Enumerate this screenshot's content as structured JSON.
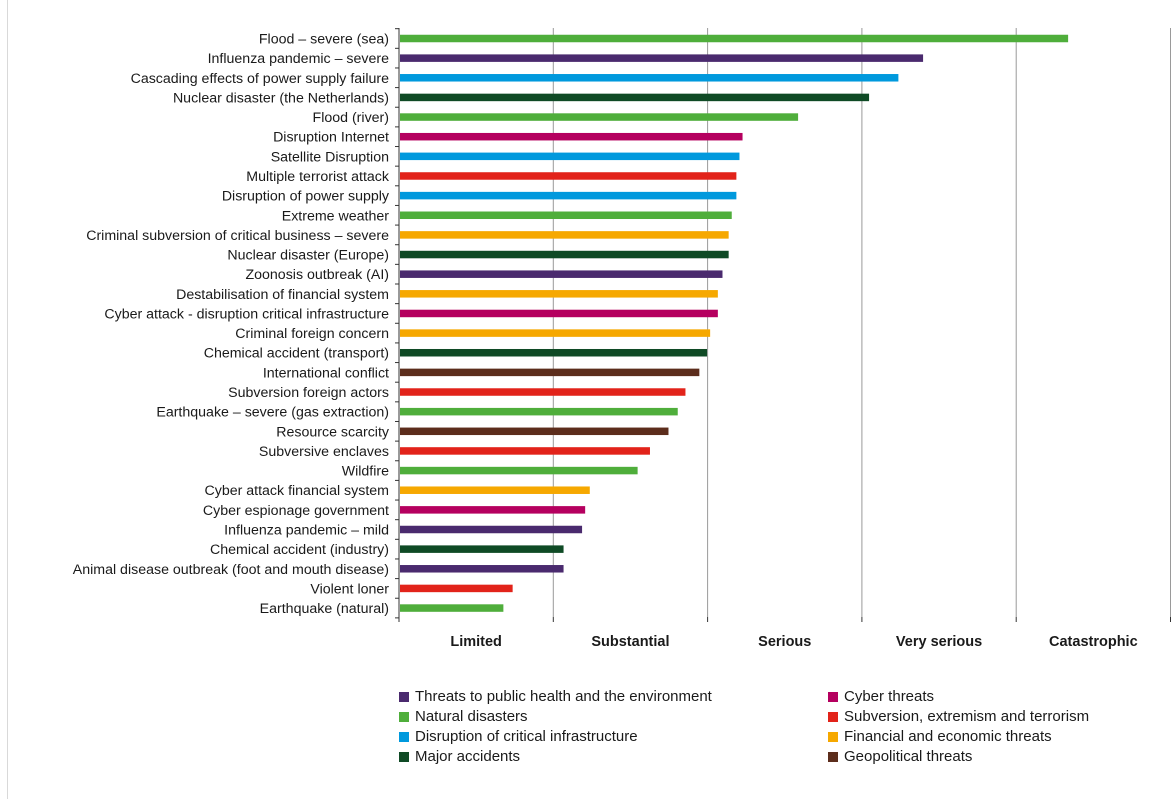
{
  "chart_data": {
    "type": "bar",
    "orientation": "horizontal",
    "grid": true,
    "legend_position": "bottom",
    "x_categories": [
      "Limited",
      "Substantial",
      "Serious",
      "Very serious",
      "Catastrophic"
    ],
    "xlim": [
      0,
      5
    ],
    "groups": [
      {
        "key": "health",
        "name": "Threats to public health and the environment",
        "color": "#4a2a6e"
      },
      {
        "key": "cyber",
        "name": "Cyber threats",
        "color": "#b5005f"
      },
      {
        "key": "natural",
        "name": "Natural disasters",
        "color": "#4fae3b"
      },
      {
        "key": "subversion",
        "name": "Subversion, extremism and terrorism",
        "color": "#e2231a"
      },
      {
        "key": "infra",
        "name": "Disruption of critical infrastructure",
        "color": "#0099dd"
      },
      {
        "key": "financial",
        "name": "Financial and economic threats",
        "color": "#f6a800"
      },
      {
        "key": "accidents",
        "name": "Major accidents",
        "color": "#0f4a25"
      },
      {
        "key": "geopolitical",
        "name": "Geopolitical threats",
        "color": "#5c2d1c"
      }
    ],
    "bars": [
      {
        "label": "Flood – severe (sea)",
        "group": "natural",
        "value": 4.33
      },
      {
        "label": "Influenza pandemic – severe",
        "group": "health",
        "value": 3.39
      },
      {
        "label": "Cascading effects of power supply failure",
        "group": "infra",
        "value": 3.23
      },
      {
        "label": "Nuclear disaster (the Netherlands)",
        "group": "accidents",
        "value": 3.04
      },
      {
        "label": "Flood (river)",
        "group": "natural",
        "value": 2.58
      },
      {
        "label": "Disruption Internet",
        "group": "cyber",
        "value": 2.22
      },
      {
        "label": "Satellite Disruption",
        "group": "infra",
        "value": 2.2
      },
      {
        "label": "Multiple terrorist attack",
        "group": "subversion",
        "value": 2.18
      },
      {
        "label": "Disruption of power supply",
        "group": "infra",
        "value": 2.18
      },
      {
        "label": "Extreme weather",
        "group": "natural",
        "value": 2.15
      },
      {
        "label": "Criminal subversion of critical business – severe",
        "group": "financial",
        "value": 2.13
      },
      {
        "label": "Nuclear disaster (Europe)",
        "group": "accidents",
        "value": 2.13
      },
      {
        "label": "Zoonosis outbreak (AI)",
        "group": "health",
        "value": 2.09
      },
      {
        "label": "Destabilisation of financial system",
        "group": "financial",
        "value": 2.06
      },
      {
        "label": "Cyber attack - disruption critical infrastructure",
        "group": "cyber",
        "value": 2.06
      },
      {
        "label": "Criminal foreign concern",
        "group": "financial",
        "value": 2.01
      },
      {
        "label": "Chemical accident (transport)",
        "group": "accidents",
        "value": 1.99
      },
      {
        "label": "International conflict",
        "group": "geopolitical",
        "value": 1.94
      },
      {
        "label": "Subversion foreign actors",
        "group": "subversion",
        "value": 1.85
      },
      {
        "label": "Earthquake – severe (gas extraction)",
        "group": "natural",
        "value": 1.8
      },
      {
        "label": "Resource scarcity",
        "group": "geopolitical",
        "value": 1.74
      },
      {
        "label": "Subversive enclaves",
        "group": "subversion",
        "value": 1.62
      },
      {
        "label": "Wildfire",
        "group": "natural",
        "value": 1.54
      },
      {
        "label": "Cyber attack financial system",
        "group": "financial",
        "value": 1.23
      },
      {
        "label": "Cyber espionage government",
        "group": "cyber",
        "value": 1.2
      },
      {
        "label": "Influenza pandemic – mild",
        "group": "health",
        "value": 1.18
      },
      {
        "label": "Chemical accident (industry)",
        "group": "accidents",
        "value": 1.06
      },
      {
        "label": "Animal disease outbreak (foot and mouth disease)",
        "group": "health",
        "value": 1.06
      },
      {
        "label": "Violent loner",
        "group": "subversion",
        "value": 0.73
      },
      {
        "label": "Earthquake (natural)",
        "group": "natural",
        "value": 0.67
      }
    ]
  }
}
